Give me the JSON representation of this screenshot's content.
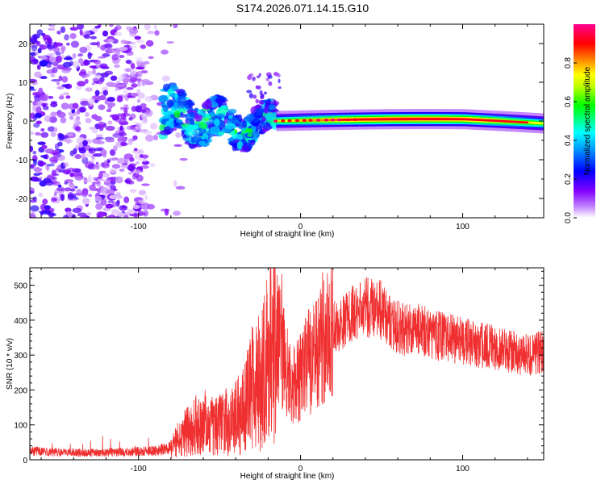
{
  "title": "S174.2026.071.14.15.G10",
  "chart_data": [
    {
      "type": "heatmap",
      "title": "",
      "xlabel": "Height of straight line (km)",
      "ylabel": "Frequency (Hz)",
      "xlim": [
        -167,
        150
      ],
      "ylim": [
        -25,
        25
      ],
      "xticks": [
        -100,
        0,
        100
      ],
      "yticks": [
        -20,
        -10,
        0,
        10,
        20
      ],
      "colorbar": {
        "label": "Normalized spectral amplitude",
        "range": [
          0,
          1
        ],
        "ticks": [
          0.0,
          0.2,
          0.4,
          0.6,
          0.8
        ],
        "tick_labels": [
          "0.0",
          "0.2",
          "0.4",
          "0.6",
          "0.8"
        ],
        "colors": [
          "#ffffff",
          "#8000ff",
          "#0000ff",
          "#00ffff",
          "#00ff00",
          "#ffff00",
          "#ff8000",
          "#ff0000",
          "#ff0080"
        ]
      },
      "regions": [
        {
          "name": "noise scatter",
          "x_range": [
            -167,
            -80
          ],
          "freq_range": [
            -25,
            25
          ],
          "amplitude": 0.1
        },
        {
          "name": "emerging signal",
          "x_range": [
            -85,
            -15
          ],
          "freq_range": [
            -8,
            8
          ],
          "amplitude": 0.3
        },
        {
          "name": "steady tone",
          "x_range": [
            -15,
            150
          ],
          "center_freq": 0,
          "peak_freq": 0.5,
          "end_freq": -1,
          "amplitude": 0.9
        }
      ]
    },
    {
      "type": "line",
      "title": "",
      "xlabel": "Height of straight line (km)",
      "ylabel": "SNR (10 * v/v)",
      "xlim": [
        -167,
        150
      ],
      "ylim": [
        0,
        550
      ],
      "xticks": [
        -100,
        0,
        100
      ],
      "yticks": [
        0,
        100,
        200,
        300,
        400,
        500
      ],
      "series": [
        {
          "name": "SNR",
          "color": "#f03030",
          "x": [
            -167,
            -150,
            -130,
            -110,
            -90,
            -80,
            -75,
            -70,
            -65,
            -60,
            -55,
            -50,
            -45,
            -40,
            -35,
            -30,
            -25,
            -20,
            -15,
            -10,
            -5,
            0,
            5,
            10,
            15,
            20,
            25,
            30,
            35,
            40,
            45,
            50,
            55,
            60,
            65,
            70,
            80,
            90,
            100,
            110,
            120,
            130,
            140,
            150
          ],
          "y": [
            25,
            22,
            20,
            22,
            25,
            35,
            60,
            80,
            100,
            110,
            95,
            100,
            110,
            120,
            150,
            200,
            220,
            300,
            350,
            280,
            200,
            250,
            280,
            320,
            360,
            380,
            390,
            410,
            430,
            440,
            430,
            430,
            400,
            380,
            370,
            380,
            360,
            350,
            340,
            330,
            320,
            310,
            300,
            310
          ]
        }
      ]
    }
  ]
}
